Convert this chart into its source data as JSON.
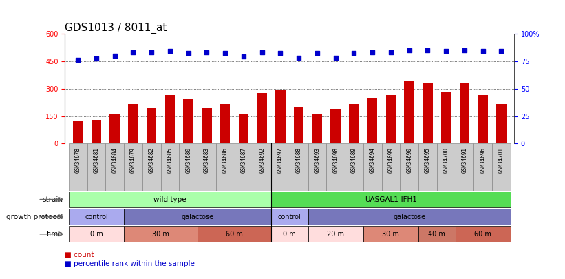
{
  "title": "GDS1013 / 8011_at",
  "samples": [
    "GSM34678",
    "GSM34681",
    "GSM34684",
    "GSM34679",
    "GSM34682",
    "GSM34685",
    "GSM34680",
    "GSM34683",
    "GSM34686",
    "GSM34687",
    "GSM34692",
    "GSM34697",
    "GSM34688",
    "GSM34693",
    "GSM34698",
    "GSM34689",
    "GSM34694",
    "GSM34699",
    "GSM34690",
    "GSM34695",
    "GSM34700",
    "GSM34691",
    "GSM34696",
    "GSM34701"
  ],
  "counts": [
    120,
    130,
    160,
    215,
    195,
    265,
    245,
    195,
    215,
    160,
    275,
    290,
    200,
    160,
    190,
    215,
    250,
    265,
    340,
    330,
    280,
    330,
    265,
    215
  ],
  "percentiles": [
    76,
    77,
    80,
    83,
    83,
    84,
    82,
    83,
    82,
    79,
    83,
    82,
    78,
    82,
    78,
    82,
    83,
    83,
    85,
    85,
    84,
    85,
    84,
    84
  ],
  "bar_color": "#cc0000",
  "dot_color": "#0000cc",
  "ylim_left": [
    0,
    600
  ],
  "ylim_right": [
    0,
    100
  ],
  "yticks_left": [
    0,
    150,
    300,
    450,
    600
  ],
  "yticks_right": [
    0,
    25,
    50,
    75,
    100
  ],
  "strain_groups": [
    {
      "label": "wild type",
      "start": 0,
      "end": 11,
      "color": "#aaffaa"
    },
    {
      "label": "UASGAL1-IFH1",
      "start": 11,
      "end": 24,
      "color": "#55dd55"
    }
  ],
  "protocol_groups": [
    {
      "label": "control",
      "start": 0,
      "end": 3,
      "color": "#aaaaee"
    },
    {
      "label": "galactose",
      "start": 3,
      "end": 11,
      "color": "#7777bb"
    },
    {
      "label": "control",
      "start": 11,
      "end": 13,
      "color": "#aaaaee"
    },
    {
      "label": "galactose",
      "start": 13,
      "end": 24,
      "color": "#7777bb"
    }
  ],
  "time_groups": [
    {
      "label": "0 m",
      "start": 0,
      "end": 3,
      "color": "#ffdddd"
    },
    {
      "label": "30 m",
      "start": 3,
      "end": 7,
      "color": "#dd8877"
    },
    {
      "label": "60 m",
      "start": 7,
      "end": 11,
      "color": "#cc6655"
    },
    {
      "label": "0 m",
      "start": 11,
      "end": 13,
      "color": "#ffdddd"
    },
    {
      "label": "20 m",
      "start": 13,
      "end": 16,
      "color": "#ffdddd"
    },
    {
      "label": "30 m",
      "start": 16,
      "end": 19,
      "color": "#dd8877"
    },
    {
      "label": "40 m",
      "start": 19,
      "end": 21,
      "color": "#cc7766"
    },
    {
      "label": "60 m",
      "start": 21,
      "end": 24,
      "color": "#cc6655"
    }
  ],
  "legend_count_color": "#cc0000",
  "legend_pct_color": "#0000cc",
  "tick_fontsize": 7,
  "title_fontsize": 11,
  "sep_index": 10.5
}
